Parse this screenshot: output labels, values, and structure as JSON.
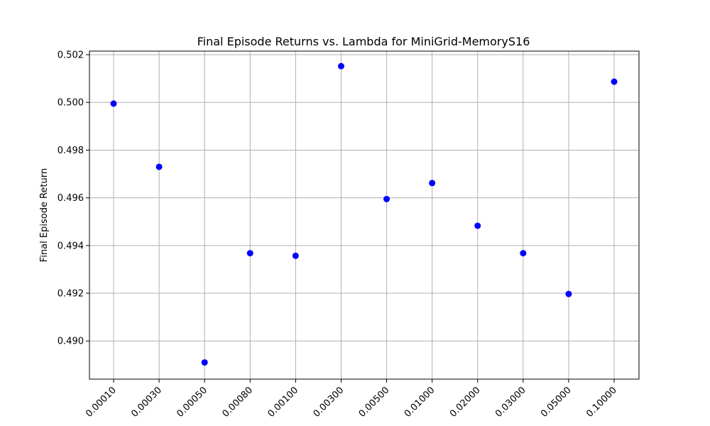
{
  "chart_data": {
    "type": "scatter",
    "title": "Final Episode Returns vs. Lambda for MiniGrid-MemoryS16",
    "xlabel": "",
    "ylabel": "Final Episode Return",
    "categories": [
      "0.00010",
      "0.00030",
      "0.00050",
      "0.00080",
      "0.00100",
      "0.00300",
      "0.00500",
      "0.01000",
      "0.02000",
      "0.03000",
      "0.05000",
      "0.10000"
    ],
    "values": [
      0.49995,
      0.4973,
      0.4891,
      0.49368,
      0.49357,
      0.50152,
      0.49595,
      0.49662,
      0.49483,
      0.49368,
      0.49197,
      0.50087
    ],
    "yticks": [
      "0.490",
      "0.492",
      "0.494",
      "0.496",
      "0.498",
      "0.500",
      "0.502"
    ],
    "ylim": [
      0.4884,
      0.50215
    ],
    "grid": true,
    "point_color": "#0000ff"
  }
}
